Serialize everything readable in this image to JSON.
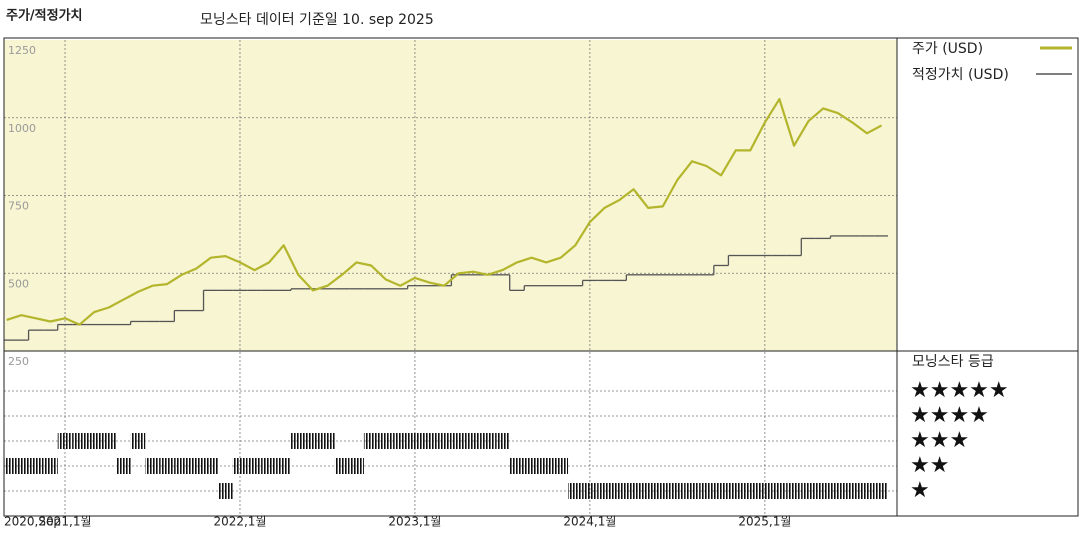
{
  "chart_data": {
    "type": "line",
    "title": "주가/적정가치",
    "subtitle": "모닝스타 데이터 기준일 10. sep 2025",
    "x": [
      "2020-09",
      "2020-10",
      "2020-11",
      "2020-12",
      "2021-01",
      "2021-02",
      "2021-03",
      "2021-04",
      "2021-05",
      "2021-06",
      "2021-07",
      "2021-08",
      "2021-09",
      "2021-10",
      "2021-11",
      "2021-12",
      "2022-01",
      "2022-02",
      "2022-03",
      "2022-04",
      "2022-05",
      "2022-06",
      "2022-07",
      "2022-08",
      "2022-09",
      "2022-10",
      "2022-11",
      "2022-12",
      "2023-01",
      "2023-02",
      "2023-03",
      "2023-04",
      "2023-05",
      "2023-06",
      "2023-07",
      "2023-08",
      "2023-09",
      "2023-10",
      "2023-11",
      "2023-12",
      "2024-01",
      "2024-02",
      "2024-03",
      "2024-04",
      "2024-05",
      "2024-06",
      "2024-07",
      "2024-08",
      "2024-09",
      "2024-10",
      "2024-11",
      "2024-12",
      "2025-01",
      "2025-02",
      "2025-03",
      "2025-04",
      "2025-05",
      "2025-06",
      "2025-07",
      "2025-08",
      "2025-09"
    ],
    "series": [
      {
        "name": "주가 (USD)",
        "color": "#b3b52c",
        "values": [
          350,
          365,
          355,
          345,
          355,
          335,
          375,
          390,
          415,
          440,
          460,
          465,
          495,
          515,
          550,
          555,
          535,
          510,
          535,
          590,
          495,
          445,
          460,
          495,
          535,
          525,
          480,
          460,
          485,
          470,
          460,
          500,
          505,
          495,
          510,
          535,
          550,
          535,
          550,
          590,
          665,
          710,
          735,
          770,
          710,
          715,
          800,
          860,
          845,
          815,
          895,
          895,
          985,
          1060,
          910,
          990,
          1030,
          1015,
          985,
          950,
          975
        ]
      },
      {
        "name": "적정가치 (USD)",
        "color": "#555555",
        "step": true,
        "values": [
          285,
          285,
          317,
          317,
          335,
          335,
          335,
          335,
          335,
          345,
          345,
          345,
          380,
          380,
          445,
          445,
          445,
          445,
          445,
          445,
          450,
          450,
          450,
          450,
          450,
          450,
          450,
          450,
          460,
          460,
          460,
          495,
          495,
          495,
          495,
          445,
          460,
          460,
          460,
          460,
          477,
          477,
          477,
          495,
          495,
          495,
          495,
          495,
          495,
          525,
          557,
          557,
          557,
          557,
          557,
          612,
          612,
          620,
          620,
          620,
          620
        ]
      }
    ],
    "ylim": [
      250,
      1250
    ],
    "yticks": [
      250,
      500,
      750,
      1000,
      1250
    ],
    "xticks": [
      {
        "value": "2020-09",
        "label": "2020,Sep"
      },
      {
        "value": "2021-01",
        "label": "2021,1월"
      },
      {
        "value": "2022-01",
        "label": "2022,1월"
      },
      {
        "value": "2023-01",
        "label": "2023,1월"
      },
      {
        "value": "2024-01",
        "label": "2024,1월"
      },
      {
        "value": "2025-01",
        "label": "2025,1월"
      }
    ],
    "grid": true,
    "panel_color": "#f8f5d2",
    "ratings": {
      "title": "모닝스타 등급",
      "color": "#111111",
      "values": [
        2,
        2,
        2,
        2,
        3,
        3,
        3,
        3,
        2,
        3,
        2,
        2,
        2,
        2,
        2,
        1,
        2,
        2,
        2,
        2,
        3,
        3,
        3,
        2,
        2,
        3,
        3,
        3,
        3,
        3,
        3,
        3,
        3,
        3,
        3,
        2,
        2,
        2,
        2,
        1,
        1,
        1,
        1,
        1,
        1,
        1,
        1,
        1,
        1,
        1,
        1,
        1,
        1,
        1,
        1,
        1,
        1,
        1,
        1,
        1,
        1
      ]
    },
    "rating_labels": [
      {
        "value": 5,
        "label": "★★★★★"
      },
      {
        "value": 4,
        "label": "★★★★"
      },
      {
        "value": 3,
        "label": "★★★"
      },
      {
        "value": 2,
        "label": "★★"
      },
      {
        "value": 1,
        "label": "★"
      }
    ]
  }
}
